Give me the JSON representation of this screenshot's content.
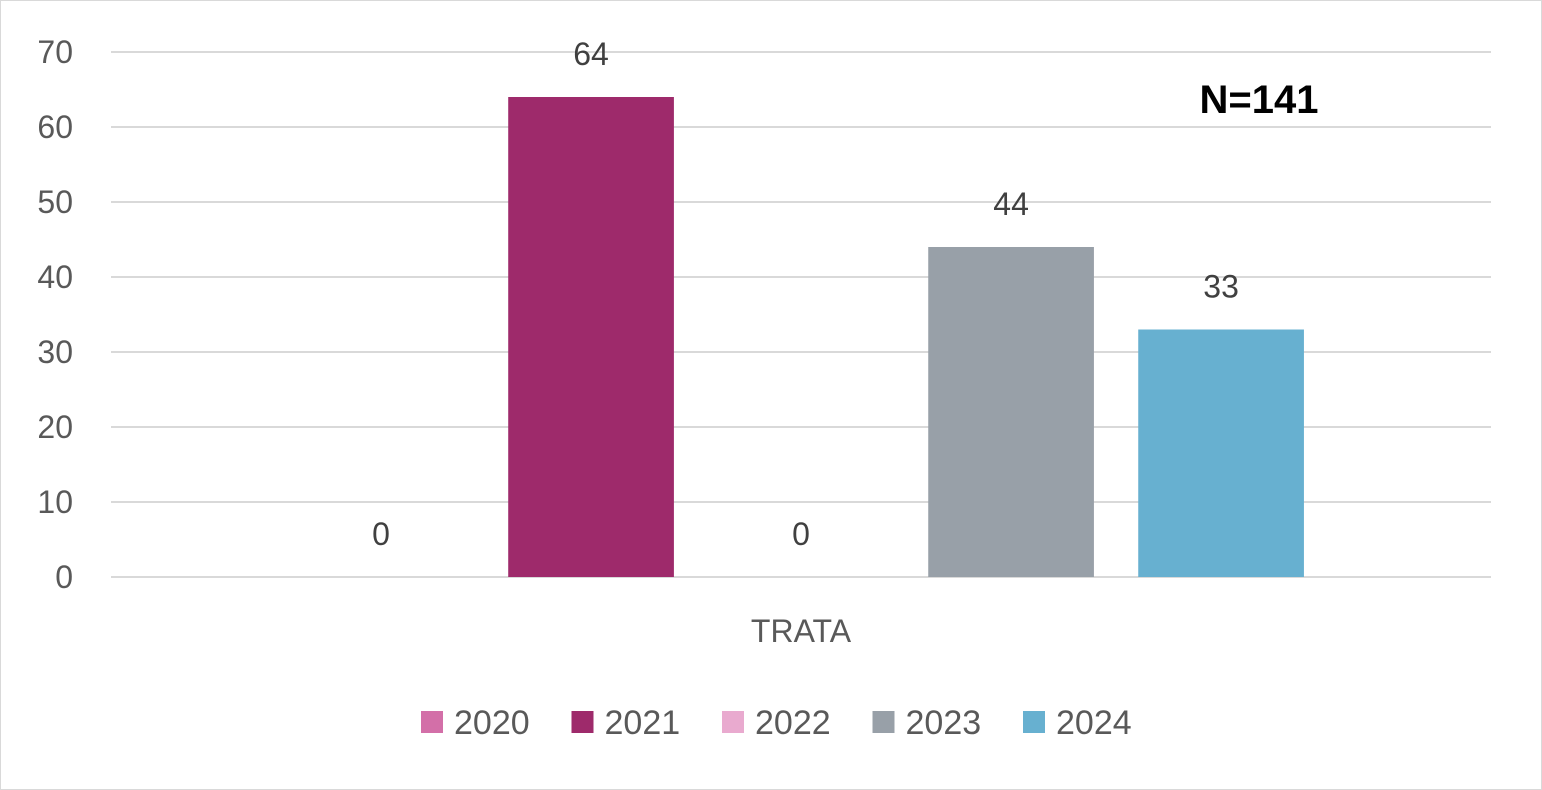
{
  "chart_data": {
    "type": "bar",
    "categories": [
      "TRATA"
    ],
    "series": [
      {
        "name": "2020",
        "values": [
          0
        ],
        "color": "#D36FA8"
      },
      {
        "name": "2021",
        "values": [
          64
        ],
        "color": "#9E2A6B"
      },
      {
        "name": "2022",
        "values": [
          0
        ],
        "color": "#E9AACF"
      },
      {
        "name": "2023",
        "values": [
          44
        ],
        "color": "#98A0A8"
      },
      {
        "name": "2024",
        "values": [
          33
        ],
        "color": "#67B0D0"
      }
    ],
    "title": "",
    "xlabel": "",
    "ylabel": "",
    "ylim": [
      0,
      70
    ],
    "yticks": [
      0,
      10,
      20,
      30,
      40,
      50,
      60,
      70
    ],
    "annotation": "N=141",
    "grid": true,
    "legend_position": "bottom",
    "data_labels": true
  }
}
